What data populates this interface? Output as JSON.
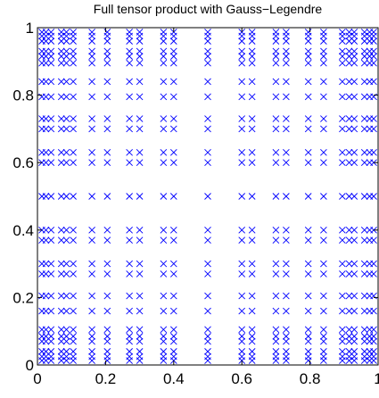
{
  "chart_data": {
    "type": "scatter",
    "title": "Full tensor product with Gauss−Legendre",
    "xlabel": "",
    "ylabel": "",
    "xlim": [
      0,
      1
    ],
    "ylim": [
      0,
      1
    ],
    "xticks": [
      "0",
      "0.2",
      "0.4",
      "0.6",
      "0.8",
      "1"
    ],
    "yticks": [
      "0",
      "0.2",
      "0.4",
      "0.6",
      "0.8",
      "1"
    ],
    "grid": false,
    "marker": "x",
    "marker_color": "#0000ff",
    "grid_nodes_1d": [
      0.013,
      0.025,
      0.04,
      0.07,
      0.085,
      0.105,
      0.16,
      0.205,
      0.27,
      0.3,
      0.37,
      0.4,
      0.5,
      0.6,
      0.63,
      0.7,
      0.73,
      0.795,
      0.84,
      0.895,
      0.915,
      0.93,
      0.96,
      0.975,
      0.987
    ],
    "points_note": "Every (x, y) pair with x and y drawn from grid_nodes_1d."
  }
}
